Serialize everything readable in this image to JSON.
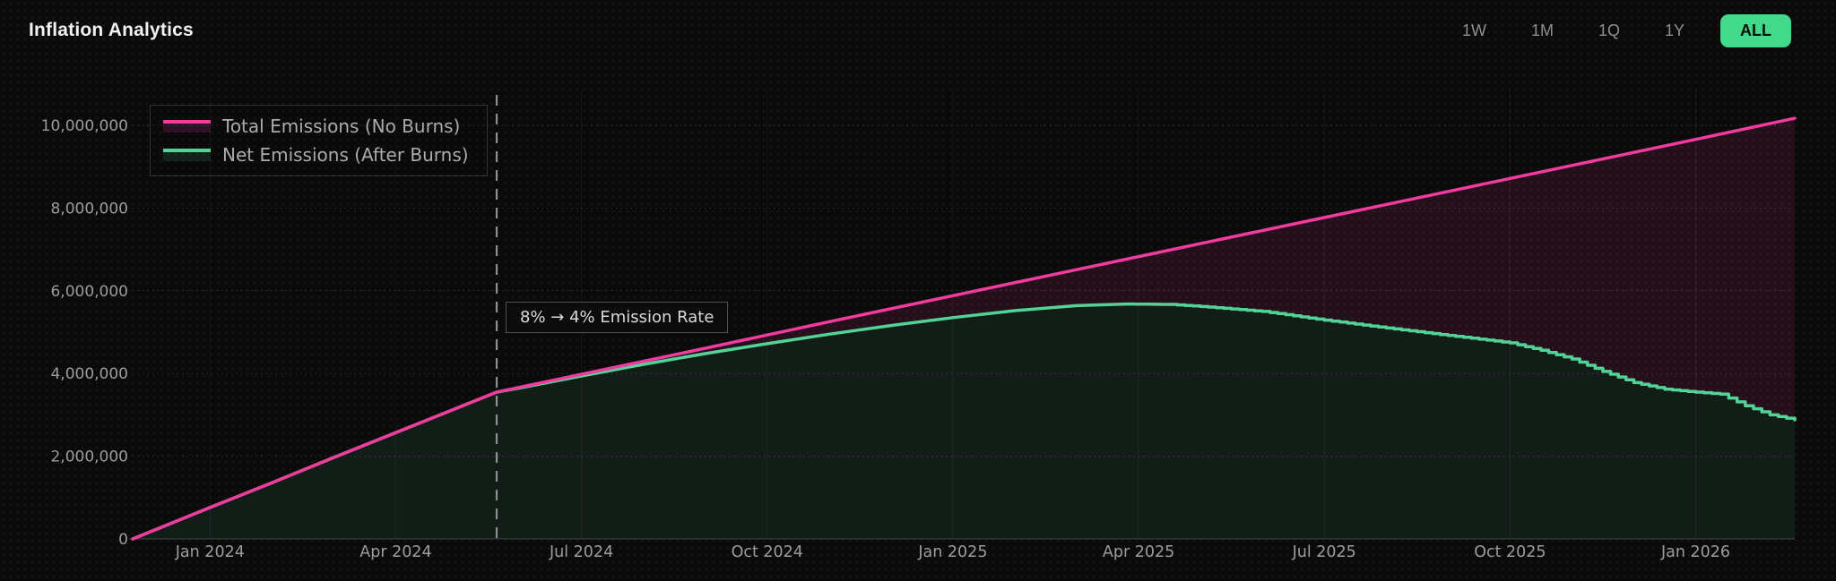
{
  "header": {
    "title": "Inflation Analytics",
    "ranges": [
      {
        "label": "1W",
        "active": false
      },
      {
        "label": "1M",
        "active": false
      },
      {
        "label": "1Q",
        "active": false
      },
      {
        "label": "1Y",
        "active": false
      },
      {
        "label": "ALL",
        "active": true
      }
    ]
  },
  "colors": {
    "page_bg": "#0a0a0a",
    "accent_green": "#43d98a",
    "total_line": "#f13b9f",
    "net_line": "#52d395",
    "total_fill": "rgba(241,59,159,0.12)",
    "net_fill": "rgba(18,31,24,0.95)",
    "grid_vertical": "rgba(255,255,255,0.055)",
    "grid_horizontal": "rgba(255,255,255,0.16)",
    "axis_text": "#9c9c9c",
    "marker_line": "#8f8f8f"
  },
  "chart_data": {
    "type": "line",
    "title": "Inflation Analytics",
    "x_unit": "months since Jan 2024",
    "x_range": [
      -1.25,
      25.6
    ],
    "y_range": [
      0,
      10870000
    ],
    "grid": true,
    "legend_position": "top-left",
    "x_axis": {
      "ticks": [
        {
          "m": 0,
          "label": "Jan 2024"
        },
        {
          "m": 3,
          "label": "Apr 2024"
        },
        {
          "m": 6,
          "label": "Jul 2024"
        },
        {
          "m": 9,
          "label": "Oct 2024"
        },
        {
          "m": 12,
          "label": "Jan 2025"
        },
        {
          "m": 15,
          "label": "Apr 2025"
        },
        {
          "m": 18,
          "label": "Jul 2025"
        },
        {
          "m": 21,
          "label": "Oct 2025"
        },
        {
          "m": 24,
          "label": "Jan 2026"
        }
      ]
    },
    "y_axis": {
      "ticks": [
        {
          "v": 0,
          "label": "0"
        },
        {
          "v": 2000000,
          "label": "2,000,000"
        },
        {
          "v": 4000000,
          "label": "4,000,000"
        },
        {
          "v": 6000000,
          "label": "6,000,000"
        },
        {
          "v": 8000000,
          "label": "8,000,000"
        },
        {
          "v": 10000000,
          "label": "10,000,000"
        }
      ]
    },
    "series": [
      {
        "name": "Total Emissions (No Burns)",
        "color": "#f13b9f",
        "points": [
          [
            -1.25,
            0
          ],
          [
            0,
            760000
          ],
          [
            1,
            1360000
          ],
          [
            2,
            1970000
          ],
          [
            3,
            2570000
          ],
          [
            4,
            3170000
          ],
          [
            4.63,
            3550000
          ],
          [
            6,
            3980000
          ],
          [
            8,
            4610000
          ],
          [
            10,
            5250000
          ],
          [
            12,
            5880000
          ],
          [
            14,
            6510000
          ],
          [
            16,
            7140000
          ],
          [
            18,
            7770000
          ],
          [
            20,
            8400000
          ],
          [
            22,
            9030000
          ],
          [
            24,
            9660000
          ],
          [
            25.6,
            10170000
          ]
        ]
      },
      {
        "name": "Net Emissions (After Burns)",
        "color": "#52d395",
        "points": [
          [
            -1.25,
            0
          ],
          [
            0,
            760000
          ],
          [
            1,
            1360000
          ],
          [
            2,
            1970000
          ],
          [
            3,
            2570000
          ],
          [
            4,
            3170000
          ],
          [
            4.63,
            3550000
          ],
          [
            5,
            3650000
          ],
          [
            6,
            3940000
          ],
          [
            7,
            4220000
          ],
          [
            8,
            4480000
          ],
          [
            9,
            4720000
          ],
          [
            10,
            4950000
          ],
          [
            11,
            5160000
          ],
          [
            12,
            5350000
          ],
          [
            13,
            5520000
          ],
          [
            14,
            5640000
          ],
          [
            14.8,
            5680000
          ],
          [
            15.5,
            5670000
          ],
          [
            16,
            5620000
          ],
          [
            17,
            5500000
          ],
          [
            18,
            5290000
          ],
          [
            19,
            5100000
          ],
          [
            20,
            4920000
          ],
          [
            21,
            4740000
          ],
          [
            21.5,
            4560000
          ],
          [
            22,
            4350000
          ],
          [
            22.5,
            4050000
          ],
          [
            23,
            3780000
          ],
          [
            23.5,
            3620000
          ],
          [
            24,
            3550000
          ],
          [
            24.4,
            3500000
          ],
          [
            24.8,
            3220000
          ],
          [
            25.2,
            3000000
          ],
          [
            25.6,
            2880000
          ]
        ]
      }
    ],
    "marker": {
      "m": 4.63,
      "label": "8% → 4% Emission Rate"
    }
  }
}
